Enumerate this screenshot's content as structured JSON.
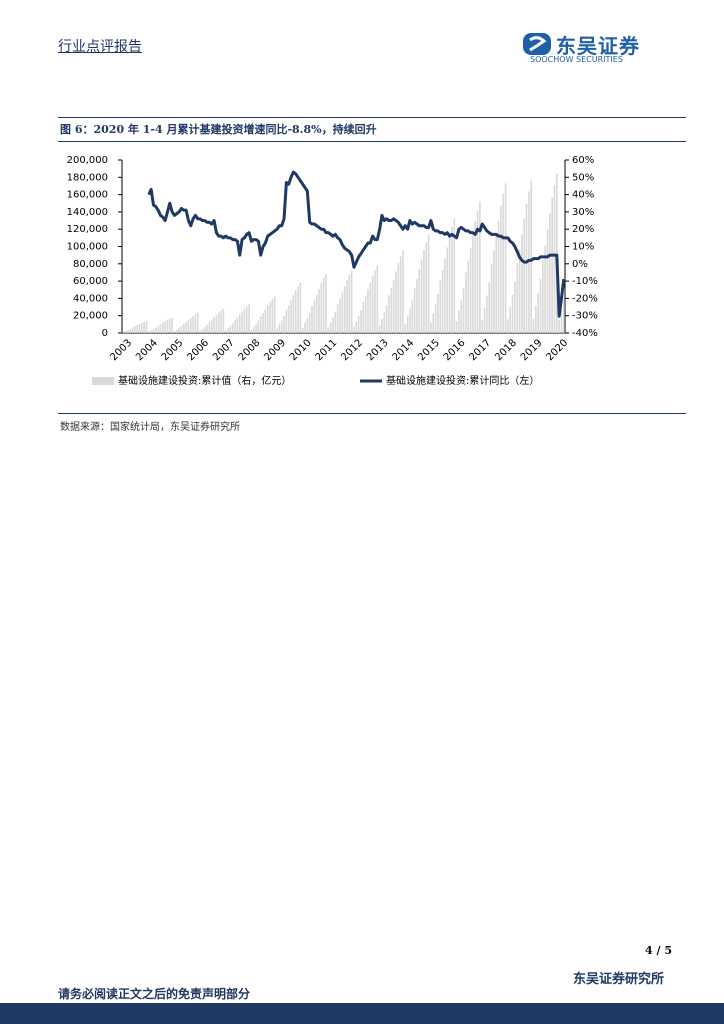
{
  "header": {
    "title": "行业点评报告"
  },
  "logo": {
    "name": "东吴证券",
    "english": "SOOCHOW SECURITIES"
  },
  "figure": {
    "title": "图 6：2020 年 1-4 月累计基建投资增速同比-8.8%，持续回升"
  },
  "chart_data": {
    "type": "combo",
    "categories": [
      "2003",
      null,
      null,
      null,
      null,
      null,
      null,
      null,
      null,
      null,
      null,
      "2004",
      null,
      null,
      null,
      null,
      null,
      null,
      null,
      null,
      null,
      null,
      "2005",
      null,
      null,
      null,
      null,
      null,
      null,
      null,
      null,
      null,
      null,
      "2006",
      null,
      null,
      null,
      null,
      null,
      null,
      null,
      null,
      null,
      null,
      "2007",
      null,
      null,
      null,
      null,
      null,
      null,
      null,
      null,
      null,
      null,
      "2008",
      null,
      null,
      null,
      null,
      null,
      null,
      null,
      null,
      null,
      null,
      "2009",
      null,
      null,
      null,
      null,
      null,
      null,
      null,
      null,
      null,
      null,
      "2010",
      null,
      null,
      null,
      null,
      null,
      null,
      null,
      null,
      null,
      null,
      "2011",
      null,
      null,
      null,
      null,
      null,
      null,
      null,
      null,
      null,
      null,
      "2012",
      null,
      null,
      null,
      null,
      null,
      null,
      null,
      null,
      null,
      null,
      "2013",
      null,
      null,
      null,
      null,
      null,
      null,
      null,
      null,
      null,
      null,
      "2014",
      null,
      null,
      null,
      null,
      null,
      null,
      null,
      null,
      null,
      null,
      "2015",
      null,
      null,
      null,
      null,
      null,
      null,
      null,
      null,
      null,
      null,
      "2016",
      null,
      null,
      null,
      null,
      null,
      null,
      null,
      null,
      null,
      null,
      "2017",
      null,
      null,
      null,
      null,
      null,
      null,
      null,
      null,
      null,
      null,
      "2018",
      null,
      null,
      null,
      null,
      null,
      null,
      null,
      null,
      null,
      null,
      "2019",
      null,
      null,
      null,
      null,
      null,
      null,
      null,
      null,
      null,
      null,
      "2020",
      null,
      null
    ],
    "series": [
      {
        "name": "基础设施建设投资:累计值（右，亿元）",
        "type": "bar",
        "color": "#d9d9d9",
        "values": [
          1300,
          2400,
          3500,
          4800,
          6400,
          7700,
          9100,
          10500,
          11900,
          13000,
          14000,
          1600,
          3100,
          4500,
          6100,
          8300,
          9900,
          11700,
          13500,
          15300,
          16700,
          18000,
          2100,
          3900,
          5800,
          7800,
          10600,
          12700,
          15000,
          17300,
          19600,
          21400,
          23000,
          2500,
          4800,
          7000,
          9500,
          12900,
          15400,
          18200,
          21000,
          23800,
          26000,
          28000,
          3000,
          5600,
          8300,
          11200,
          15200,
          18200,
          21500,
          24800,
          28100,
          30700,
          33000,
          3800,
          7100,
          10500,
          14300,
          19300,
          23100,
          27300,
          31500,
          35700,
          39100,
          42000,
          5200,
          9900,
          14500,
          19700,
          26700,
          31900,
          37700,
          43500,
          49300,
          53900,
          58000,
          6100,
          11600,
          17000,
          23100,
          31300,
          37400,
          44200,
          51000,
          57800,
          63200,
          68000,
          6500,
          12200,
          18000,
          24500,
          33100,
          39600,
          46800,
          54000,
          61200,
          67000,
          72000,
          7000,
          13300,
          19500,
          26500,
          35900,
          42900,
          50700,
          58500,
          66300,
          72500,
          78000,
          8600,
          16200,
          23800,
          32300,
          43700,
          52300,
          61800,
          71300,
          80800,
          88400,
          95000,
          10200,
          19200,
          28300,
          38400,
          52000,
          62200,
          73500,
          84800,
          96100,
          105100,
          113000,
          11900,
          22400,
          33000,
          44900,
          60700,
          72600,
          85800,
          99000,
          112200,
          122800,
          132000,
          13700,
          25800,
          38000,
          51700,
          69900,
          83600,
          98800,
          114000,
          129200,
          141400,
          152000,
          15600,
          29400,
          43300,
          58800,
          79600,
          95200,
          112500,
          129800,
          147100,
          160900,
          173000,
          15800,
          29900,
          44000,
          59800,
          81000,
          96800,
          114400,
          132000,
          149600,
          163700,
          176000,
          16600,
          31300,
          46000,
          62600,
          84600,
          101200,
          119600,
          138000,
          156400,
          171100,
          184000,
          15000,
          27000,
          40000
        ]
      },
      {
        "name": "基础设施建设投资:累计同比（左）",
        "type": "line",
        "color": "#1f3864",
        "axis": "y2",
        "values": [
          null,
          null,
          null,
          null,
          null,
          null,
          null,
          null,
          null,
          null,
          null,
          40,
          43,
          34,
          33,
          31,
          28,
          27,
          25,
          30,
          35,
          30,
          28,
          29,
          30,
          32,
          31,
          31,
          25,
          22,
          26,
          28,
          26,
          26,
          25,
          25,
          24,
          24,
          23,
          25,
          18,
          16,
          16,
          15,
          16,
          15,
          15,
          14,
          14,
          13,
          5,
          14,
          15,
          17,
          18,
          13,
          14,
          14,
          13,
          5,
          10,
          12,
          16,
          17,
          18,
          19,
          20,
          22,
          22,
          26,
          47,
          46,
          50,
          53,
          52,
          50,
          48,
          46,
          44,
          42,
          24,
          23,
          23,
          22,
          21,
          20,
          20,
          18,
          18,
          17,
          16,
          17,
          15,
          14,
          11,
          9,
          8,
          7,
          5,
          -2,
          1,
          4,
          6,
          8,
          10,
          12,
          12,
          16,
          14,
          14,
          20,
          28,
          25,
          26,
          25,
          25,
          26,
          25,
          24,
          22,
          20,
          22,
          20,
          25,
          23,
          24,
          23,
          22,
          22,
          22,
          21,
          21,
          25,
          20,
          19,
          19,
          18,
          18,
          17,
          18,
          16,
          17,
          16,
          15,
          20,
          21,
          20,
          19,
          19,
          18,
          18,
          17,
          20,
          19,
          23,
          21,
          19,
          18,
          17,
          17,
          17,
          16,
          16,
          15,
          15,
          15,
          13,
          12,
          10,
          7,
          4,
          2,
          1,
          1,
          2,
          2,
          3,
          3,
          3,
          4,
          4,
          4,
          4,
          5,
          5,
          5,
          5,
          -30.3,
          -19.7,
          -8.8
        ]
      }
    ],
    "ylim": [
      0,
      200000
    ],
    "yticks": [
      0,
      {
        "value": 20000,
        "label": "20,000"
      },
      {
        "value": 40000,
        "label": "40,000"
      },
      {
        "value": 60000,
        "label": "60,000"
      },
      {
        "value": 80000,
        "label": "80,000"
      },
      {
        "value": 100000,
        "label": "100,000"
      },
      {
        "value": 120000,
        "label": "120,000"
      },
      {
        "value": 140000,
        "label": "140,000"
      },
      {
        "value": 160000,
        "label": "160,000"
      },
      {
        "value": 180000,
        "label": "180,000"
      },
      {
        "value": 200000,
        "label": "200,000"
      }
    ],
    "y2lim": [
      -40,
      60
    ],
    "y2ticks": [
      {
        "value": -40,
        "label": "-40%"
      },
      {
        "value": -30,
        "label": "-30%"
      },
      {
        "value": -20,
        "label": "-20%"
      },
      {
        "value": -10,
        "label": "-10%"
      },
      {
        "value": 0,
        "label": "0%"
      },
      {
        "value": 10,
        "label": "10%"
      },
      {
        "value": 20,
        "label": "20%"
      },
      {
        "value": 30,
        "label": "30%"
      },
      {
        "value": 40,
        "label": "40%"
      },
      {
        "value": 50,
        "label": "50%"
      },
      {
        "value": 60,
        "label": "60%"
      }
    ],
    "legend": "bottom"
  },
  "source": "数据来源：国家统计局，东吴证券研究所",
  "page_number": "4 / 5",
  "footer": {
    "org": "东吴证券研究所",
    "disclaimer": "请务必阅读正文之后的免责声明部分"
  }
}
